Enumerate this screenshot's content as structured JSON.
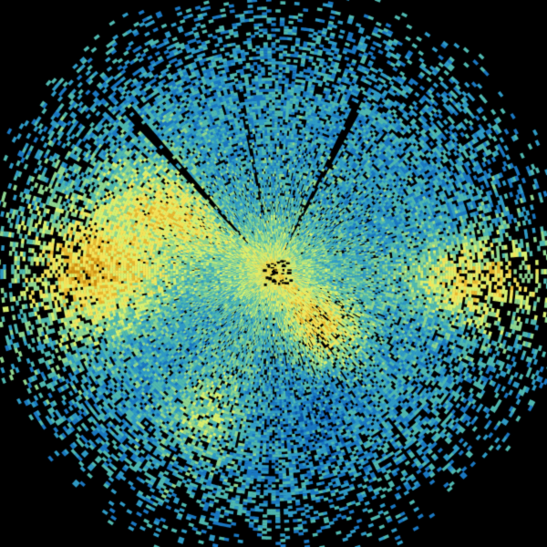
{
  "image": {
    "kind": "radar-ppi-scan",
    "background_color": "#000000",
    "palette": [
      "#0a55a8",
      "#1a78c2",
      "#2f9bc6",
      "#4fb8b0",
      "#8fd690",
      "#d8f070",
      "#f4e35a",
      "#e8b830",
      "#cf9010",
      "#b86a00",
      "#8a2a00"
    ]
  }
}
